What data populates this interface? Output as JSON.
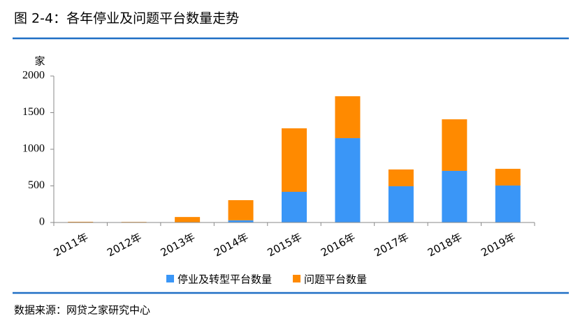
{
  "chart_data": {
    "type": "stacked_bar",
    "title": "图 2-4：各年停业及问题平台数量走势",
    "ylabel": "家",
    "source": "数据来源：网贷之家研究中心",
    "categories": [
      "2011年",
      "2012年",
      "2013年",
      "2014年",
      "2015年",
      "2016年",
      "2017年",
      "2018年",
      "2019年"
    ],
    "series": [
      {
        "name": "停业及转型平台数量",
        "color": "#3a96f7",
        "values": [
          0,
          0,
          5,
          30,
          419,
          1152,
          495,
          705,
          505
        ]
      },
      {
        "name": "问题平台数量",
        "color": "#ff8a00",
        "values": [
          10,
          8,
          70,
          275,
          867,
          572,
          229,
          704,
          228
        ]
      }
    ],
    "ylim": [
      0,
      2000
    ],
    "yticks": [
      0,
      500,
      1000,
      1500,
      2000
    ],
    "legend": "bottom"
  }
}
